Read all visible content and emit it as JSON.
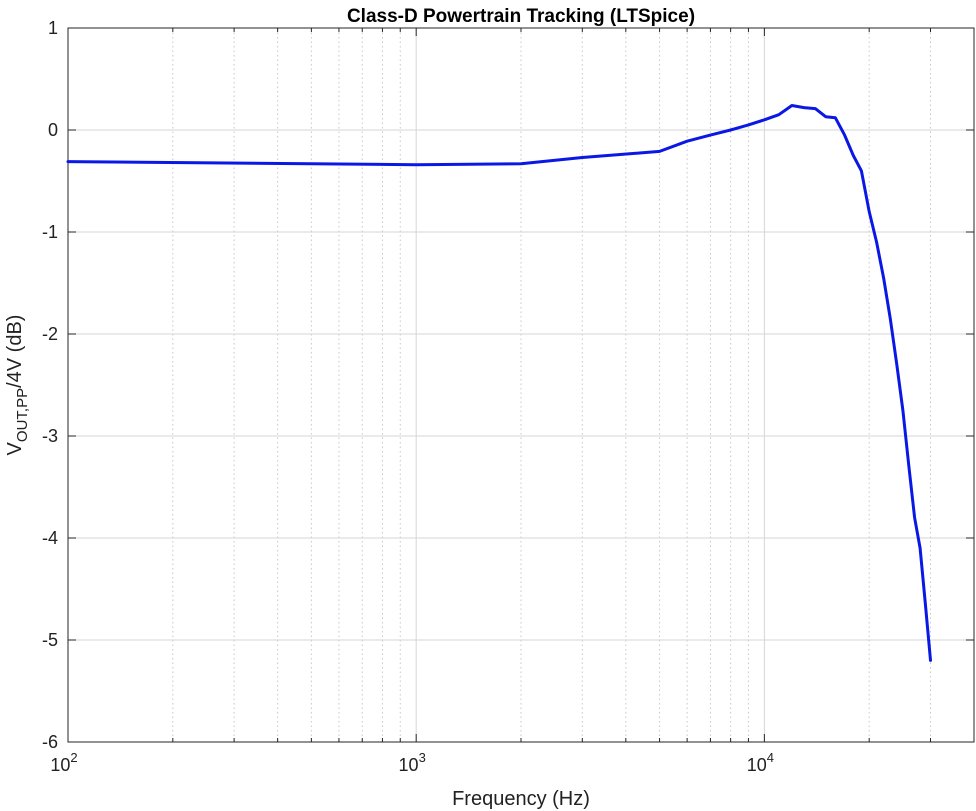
{
  "chart_data": {
    "type": "line",
    "title": "Class-D Powertrain Tracking (LTSpice)",
    "xlabel": "Frequency (Hz)",
    "ylabel": {
      "main": "V",
      "sub": "OUT,PP",
      "rest": "/4V (dB)"
    },
    "xscale": "log",
    "xlim": [
      100,
      40000
    ],
    "ylim": [
      -6,
      1
    ],
    "grid": true,
    "x_ticks": [
      {
        "value": 100,
        "base": "10",
        "exp": "2"
      },
      {
        "value": 1000,
        "base": "10",
        "exp": "3"
      },
      {
        "value": 10000,
        "base": "10",
        "exp": "4"
      }
    ],
    "y_ticks": [
      {
        "value": 1,
        "label": "1"
      },
      {
        "value": 0,
        "label": "0"
      },
      {
        "value": -1,
        "label": "-1"
      },
      {
        "value": -2,
        "label": "-2"
      },
      {
        "value": -3,
        "label": "-3"
      },
      {
        "value": -4,
        "label": "-4"
      },
      {
        "value": -5,
        "label": "-5"
      },
      {
        "value": -6,
        "label": "-6"
      }
    ],
    "series": [
      {
        "color": "#0a18e6",
        "x": [
          100,
          1000,
          2000,
          3000,
          5000,
          6000,
          7000,
          8000,
          9000,
          10000,
          11000,
          12000,
          13000,
          14000,
          15000,
          16000,
          17000,
          18000,
          19000,
          20000,
          21000,
          22000,
          23000,
          24000,
          25000,
          26000,
          27000,
          28000,
          29000,
          30000
        ],
        "y": [
          -0.31,
          -0.34,
          -0.33,
          -0.27,
          -0.21,
          -0.11,
          -0.05,
          0.0,
          0.05,
          0.1,
          0.15,
          0.24,
          0.22,
          0.21,
          0.13,
          0.12,
          -0.05,
          -0.25,
          -0.4,
          -0.8,
          -1.1,
          -1.45,
          -1.85,
          -2.3,
          -2.75,
          -3.3,
          -3.8,
          -4.1,
          -4.65,
          -5.2
        ]
      }
    ]
  }
}
